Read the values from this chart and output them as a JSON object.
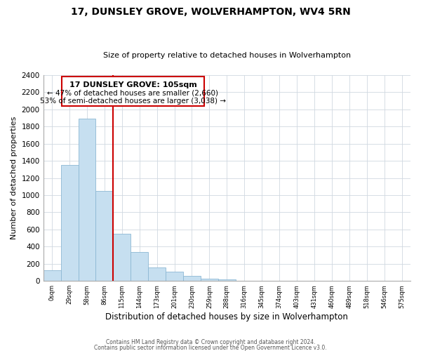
{
  "title": "17, DUNSLEY GROVE, WOLVERHAMPTON, WV4 5RN",
  "subtitle": "Size of property relative to detached houses in Wolverhampton",
  "xlabel": "Distribution of detached houses by size in Wolverhampton",
  "ylabel": "Number of detached properties",
  "footer_lines": [
    "Contains HM Land Registry data © Crown copyright and database right 2024.",
    "Contains public sector information licensed under the Open Government Licence v3.0."
  ],
  "bin_labels": [
    "0sqm",
    "29sqm",
    "58sqm",
    "86sqm",
    "115sqm",
    "144sqm",
    "173sqm",
    "201sqm",
    "230sqm",
    "259sqm",
    "288sqm",
    "316sqm",
    "345sqm",
    "374sqm",
    "403sqm",
    "431sqm",
    "460sqm",
    "489sqm",
    "518sqm",
    "546sqm",
    "575sqm"
  ],
  "bar_values": [
    125,
    1350,
    1890,
    1050,
    550,
    340,
    160,
    105,
    60,
    30,
    15,
    5,
    3,
    0,
    0,
    0,
    0,
    0,
    0,
    0,
    5
  ],
  "bar_color": "#c6dff0",
  "bar_edge_color": "#8cb8d4",
  "marker_label": "17 DUNSLEY GROVE: 105sqm",
  "annotation_line1": "← 47% of detached houses are smaller (2,660)",
  "annotation_line2": "53% of semi-detached houses are larger (3,038) →",
  "annotation_box_color": "#ffffff",
  "annotation_box_edge": "#cc0000",
  "marker_line_color": "#cc0000",
  "ylim": [
    0,
    2400
  ],
  "yticks": [
    0,
    200,
    400,
    600,
    800,
    1000,
    1200,
    1400,
    1600,
    1800,
    2000,
    2200,
    2400
  ],
  "background_color": "#ffffff",
  "grid_color": "#d0d8e0"
}
